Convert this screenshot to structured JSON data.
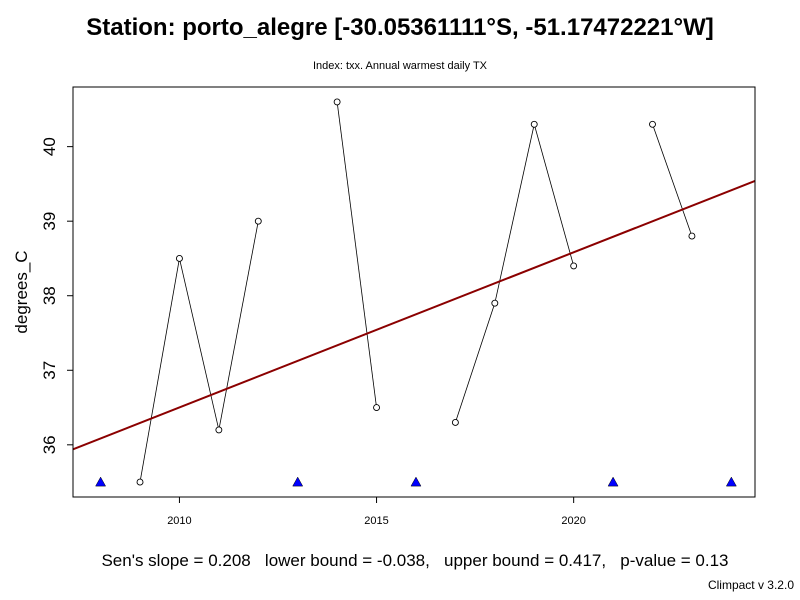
{
  "title": "Station: porto_alegre [-30.05361111°S, -51.17472221°W]",
  "subtitle": "Index: txx. Annual warmest daily TX",
  "footer": "Sen's slope = 0.208   lower bound = -0.038,   upper bound = 0.417,   p-value = 0.13",
  "credit": "Climpact v 3.2.0",
  "colors": {
    "trend": "#8b0000",
    "missing": "#0000ff",
    "line": "#000000"
  },
  "chart_data": {
    "type": "line",
    "title": "Station: porto_alegre [-30.05361111°S, -51.17472221°W]",
    "subtitle": "Index: txx. Annual warmest daily TX",
    "xlabel": "",
    "ylabel": "degrees_C",
    "xlim": [
      2007.3,
      2024.6
    ],
    "ylim": [
      35.3,
      40.8
    ],
    "xticks": [
      2010,
      2015,
      2020
    ],
    "yticks": [
      36,
      37,
      38,
      39,
      40
    ],
    "grid": false,
    "legend": "none",
    "series": [
      {
        "x": [
          2008,
          2009,
          2010,
          2011,
          2012,
          2013,
          2014,
          2015,
          2016,
          2017,
          2018,
          2019,
          2020,
          2021,
          2022,
          2023,
          2024
        ],
        "y": [
          null,
          35.5,
          38.5,
          36.2,
          39.0,
          null,
          40.6,
          36.5,
          null,
          36.3,
          37.9,
          40.3,
          38.4,
          null,
          40.3,
          38.8,
          null
        ]
      }
    ],
    "trend_line": {
      "x": [
        2007.3,
        2024.6
      ],
      "y": [
        35.94,
        39.54
      ]
    },
    "missing_years": [
      2008,
      2013,
      2016,
      2021,
      2024
    ],
    "missing_marker_y": 35.5
  }
}
